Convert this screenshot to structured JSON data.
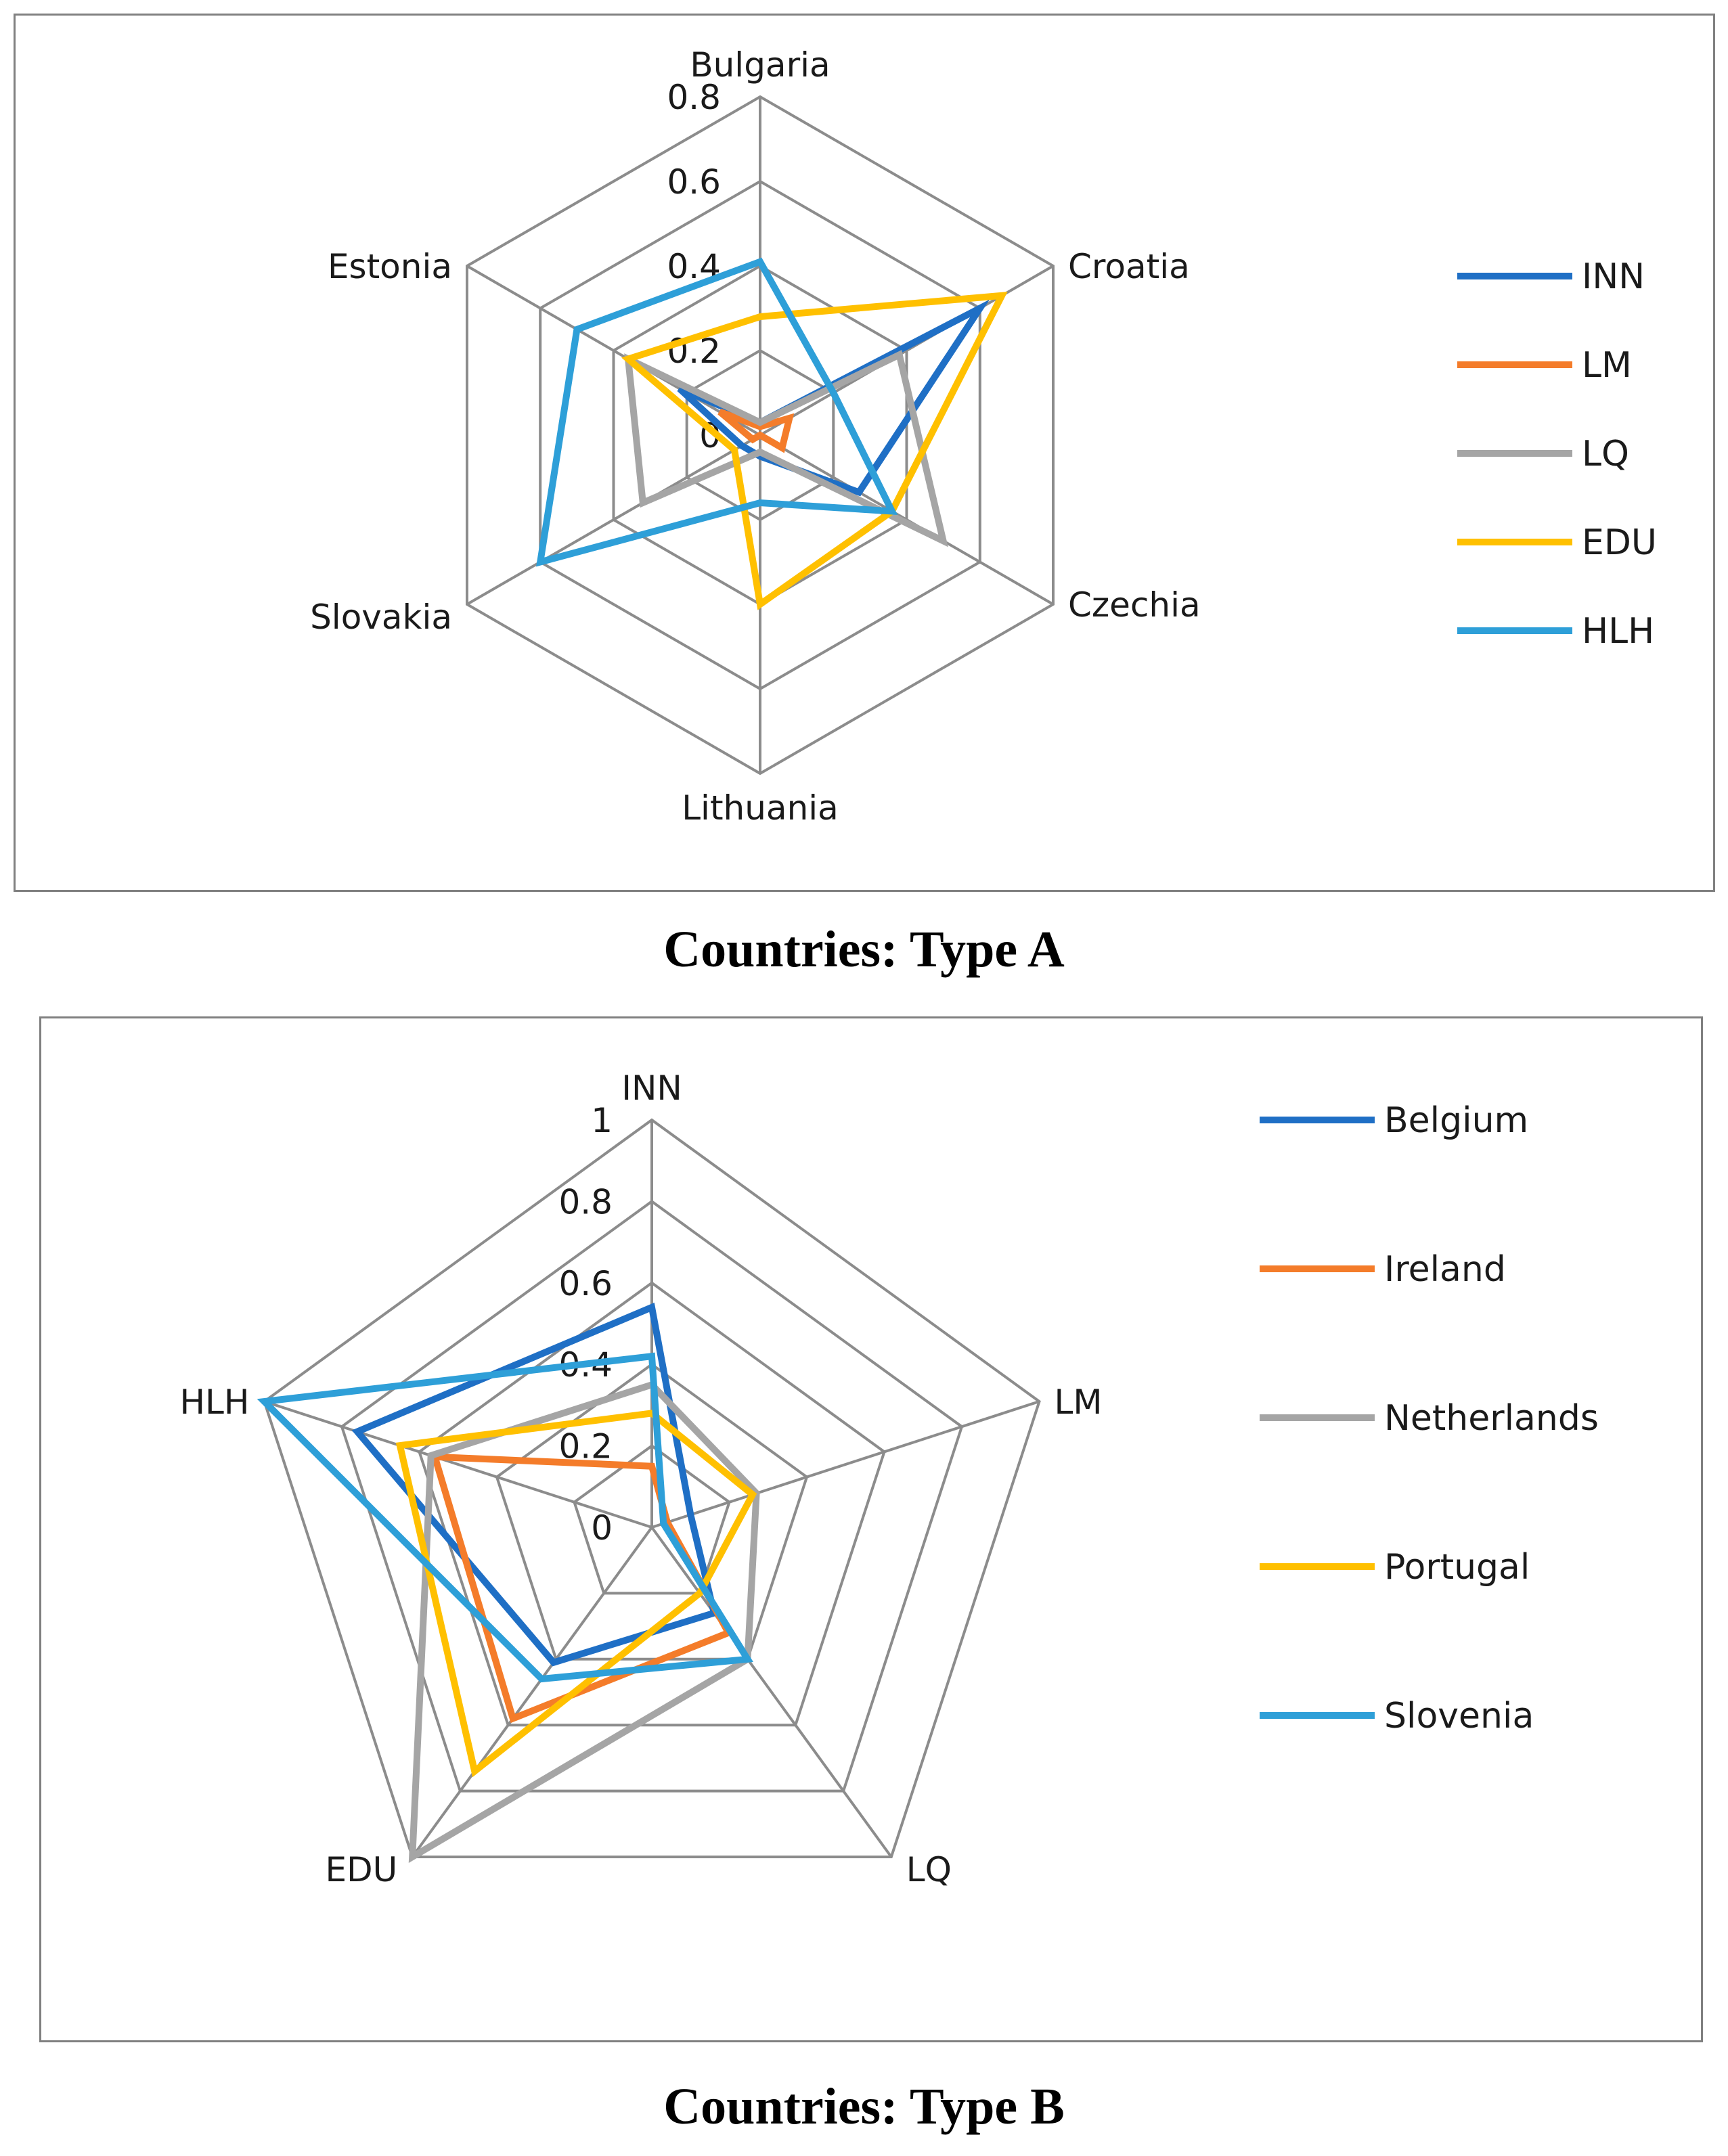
{
  "chart_data": [
    {
      "type": "radar",
      "title": "",
      "caption": "Countries: Type A",
      "categories": [
        "Bulgaria",
        "Croatia",
        "Czechia",
        "Lithuania",
        "Slovakia",
        "Estonia"
      ],
      "ylim": [
        0,
        0.8
      ],
      "ticks": [
        "0",
        "0.2",
        "0.4",
        "0.6",
        "0.8"
      ],
      "tick_values": [
        0,
        0.2,
        0.4,
        0.6,
        0.8
      ],
      "grid": true,
      "legend_position": "right",
      "series": [
        {
          "name": "INN",
          "color": "#1f6fc5",
          "values": [
            0.03,
            0.6,
            0.27,
            0.05,
            0.05,
            0.22
          ]
        },
        {
          "name": "LM",
          "color": "#f47c2a",
          "values": [
            0.02,
            0.08,
            0.06,
            0.0,
            0.02,
            0.11
          ]
        },
        {
          "name": "LQ",
          "color": "#a5a5a5",
          "values": [
            0.03,
            0.38,
            0.5,
            0.04,
            0.32,
            0.36
          ]
        },
        {
          "name": "EDU",
          "color": "#ffc000",
          "values": [
            0.28,
            0.66,
            0.36,
            0.4,
            0.07,
            0.36
          ]
        },
        {
          "name": "HLH",
          "color": "#2e9fd8",
          "values": [
            0.41,
            0.2,
            0.36,
            0.16,
            0.6,
            0.5
          ]
        }
      ]
    },
    {
      "type": "radar",
      "title": "",
      "caption": "Countries: Type B",
      "categories": [
        "INN",
        "LM",
        "LQ",
        "EDU",
        "HLH"
      ],
      "ylim": [
        0,
        1
      ],
      "ticks": [
        "0",
        "0.2",
        "0.4",
        "0.6",
        "0.8",
        "1"
      ],
      "tick_values": [
        0,
        0.2,
        0.4,
        0.6,
        0.8,
        1
      ],
      "grid": true,
      "legend_position": "right",
      "series": [
        {
          "name": "Belgium",
          "color": "#1f6fc5",
          "values": [
            0.54,
            0.1,
            0.26,
            0.41,
            0.76
          ]
        },
        {
          "name": "Ireland",
          "color": "#f47c2a",
          "values": [
            0.15,
            0.04,
            0.32,
            0.58,
            0.56
          ]
        },
        {
          "name": "Netherlands",
          "color": "#a5a5a5",
          "values": [
            0.35,
            0.27,
            0.4,
            1.0,
            0.57
          ]
        },
        {
          "name": "Portugal",
          "color": "#ffc000",
          "values": [
            0.28,
            0.26,
            0.2,
            0.74,
            0.65
          ]
        },
        {
          "name": "Slovenia",
          "color": "#2e9fd8",
          "values": [
            0.42,
            0.03,
            0.4,
            0.46,
            1.0
          ]
        }
      ]
    }
  ]
}
